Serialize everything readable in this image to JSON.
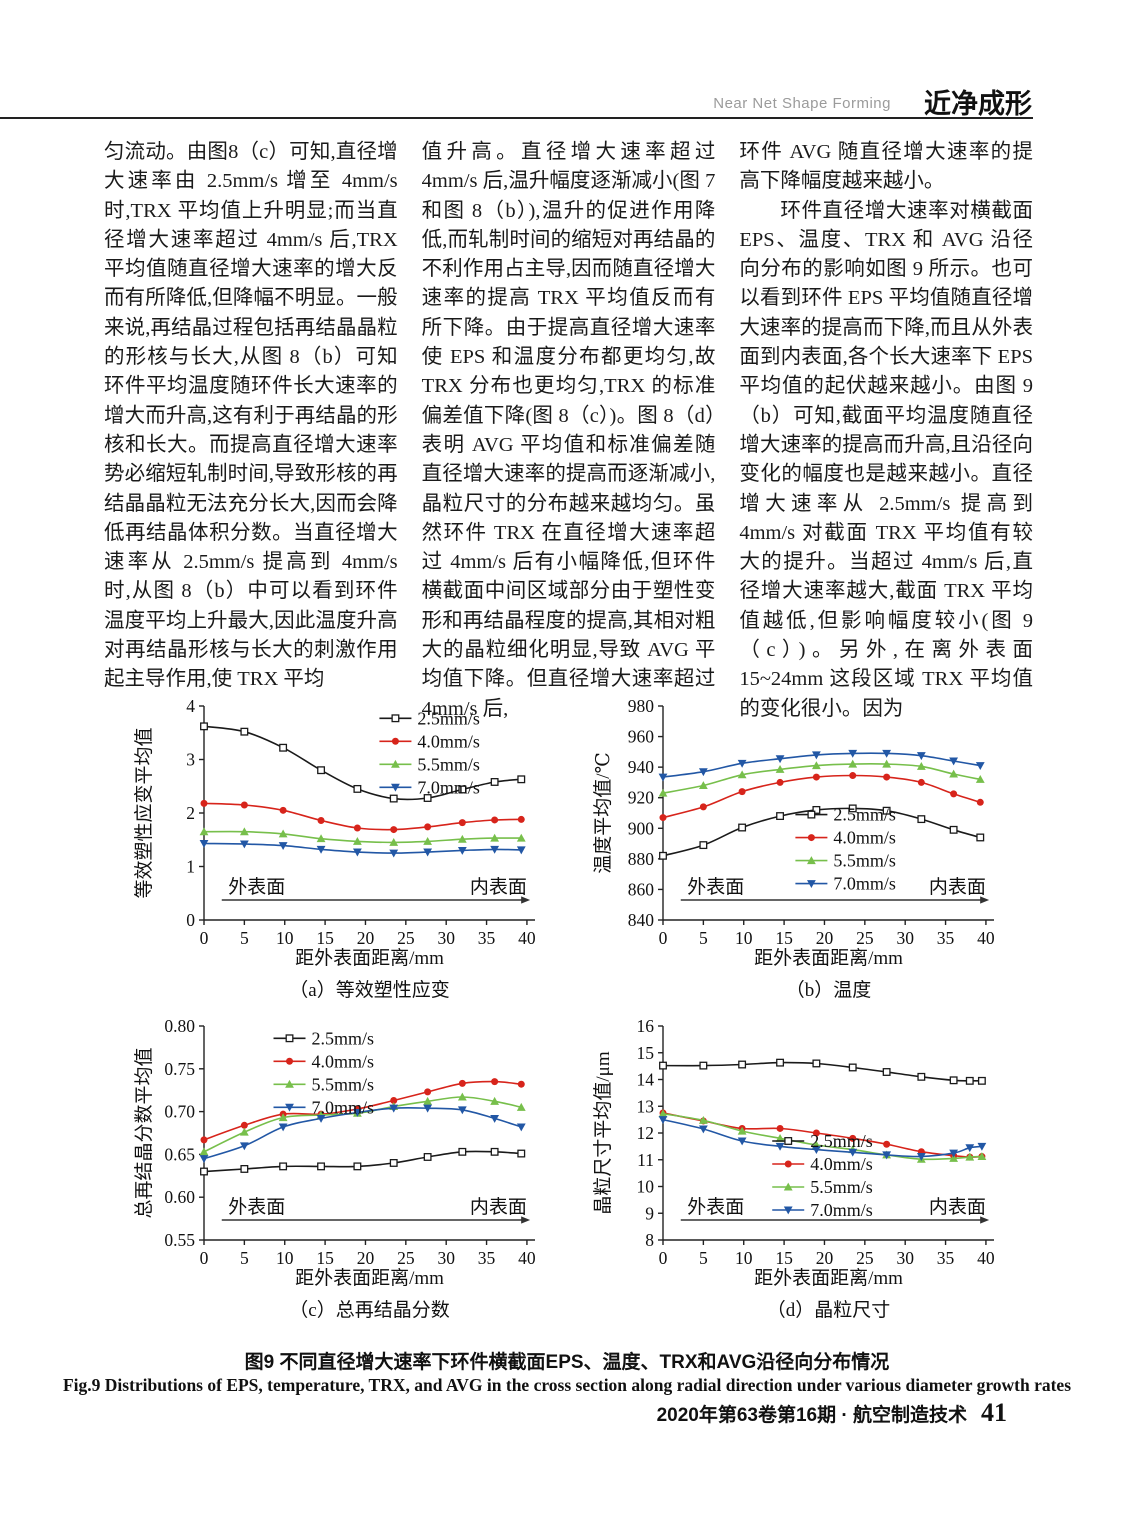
{
  "header": {
    "running_title_en": "Near Net Shape Forming",
    "running_title_zh": "近净成形"
  },
  "columns": {
    "col1": "匀流动。由图8（c）可知,直径增大速率由 2.5mm/s 增至 4mm/s 时,TRX 平均值上升明显;而当直径增大速率超过 4mm/s 后,TRX 平均值随直径增大速率的增大反而有所降低,但降幅不明显。一般来说,再结晶过程包括再结晶晶粒的形核与长大,从图 8（b）可知环件平均温度随环件长大速率的增大而升高,这有利于再结晶的形核和长大。而提高直径增大速率势必缩短轧制时间,导致形核的再结晶晶粒无法充分长大,因而会降低再结晶体积分数。当直径增大速率从 2.5mm/s 提高到 4mm/s 时,从图 8（b）中可以看到环件温度平均上升最大,因此温度升高对再结晶形核与长大的刺激作用起主导作用,使 TRX 平均",
    "col2": "值升高。直径增大速率超过 4mm/s 后,温升幅度逐渐减小(图 7 和图 8（b）),温升的促进作用降低,而轧制时间的缩短对再结晶的不利作用占主导,因而随直径增大速率的提高 TRX 平均值反而有所下降。由于提高直径增大速率使 EPS 和温度分布都更均匀,故 TRX 分布也更均匀,TRX 的标准偏差值下降(图 8（c）)。图 8（d）表明 AVG 平均值和标准偏差随直径增大速率的提高而逐渐减小,晶粒尺寸的分布越来越均匀。虽然环件 TRX 在直径增大速率超过 4mm/s 后有小幅降低,但环件横截面中间区域部分由于塑性变形和再结晶程度的提高,其相对粗大的晶粒细化明显,导致 AVG 平均值下降。但直径增大速率超过 4mm/s 后,",
    "col3_p1": "环件 AVG 随直径增大速率的提高下降幅度越来越小。",
    "col3_p2": "环件直径增大速率对横截面 EPS、温度、TRX 和 AVG 沿径向分布的影响如图 9 所示。也可以看到环件 EPS 平均值随直径增大速率的提高而下降,而且从外表面到内表面,各个长大速率下 EPS 平均值的起伏越来越小。由图 9（b）可知,截面平均温度随直径增大速率的提高而升高,且沿径向变化的幅度也是越来越小。直径增大速率从 2.5mm/s 提高到 4mm/s 对截面 TRX 平均值有较大的提升。当超过 4mm/s 后,直径增大速率越大,截面 TRX 平均值越低,但影响幅度较小(图 9（c）)。另外,在离外表面 15~24mm 这段区域 TRX 平均值的变化很小。因为"
  },
  "figure": {
    "caption_zh": "图9  不同直径增大速率下环件横截面EPS、温度、TRX和AVG沿径向分布情况",
    "caption_en": "Fig.9  Distributions of EPS, temperature, TRX, and AVG in the cross section along radial direction under various diameter growth rates"
  },
  "footer": {
    "journal": "2020年第63卷第16期 · 航空制造技术",
    "page_number": "41"
  },
  "chart_data": [
    {
      "id": "a",
      "type": "line",
      "title": "（a）等效塑性应变",
      "xlabel": "距外表面距离/mm",
      "ylabel": "等效塑性应变平均值",
      "xlim": [
        0,
        41
      ],
      "ylim": [
        0,
        4
      ],
      "xticks": [
        0,
        5,
        10,
        15,
        20,
        25,
        30,
        35,
        40
      ],
      "yticks": [
        0,
        1,
        2,
        3,
        4
      ],
      "ytick_decimals": 0,
      "grid": false,
      "legend_position": "inside-top-right",
      "legend_pos": [
        0.53,
        0.02
      ],
      "x": [
        0,
        5,
        9.8,
        14.5,
        19,
        23.5,
        27.7,
        32,
        36,
        39.3
      ],
      "series": [
        {
          "name": "2.5mm/s",
          "color": "#1a1a1a",
          "marker": "square-open",
          "values": [
            3.62,
            3.52,
            3.22,
            2.8,
            2.45,
            2.27,
            2.28,
            2.44,
            2.58,
            2.63
          ]
        },
        {
          "name": "4.0mm/s",
          "color": "#d7241b",
          "marker": "circle",
          "values": [
            2.18,
            2.15,
            2.05,
            1.86,
            1.72,
            1.69,
            1.74,
            1.82,
            1.87,
            1.88
          ]
        },
        {
          "name": "5.5mm/s",
          "color": "#77bf4b",
          "marker": "triangle-up",
          "values": [
            1.65,
            1.65,
            1.61,
            1.52,
            1.47,
            1.45,
            1.47,
            1.51,
            1.53,
            1.53
          ]
        },
        {
          "name": "7.0mm/s",
          "color": "#2257a5",
          "marker": "triangle-down",
          "values": [
            1.43,
            1.42,
            1.39,
            1.32,
            1.27,
            1.25,
            1.27,
            1.3,
            1.32,
            1.31
          ]
        }
      ],
      "annotation": {
        "left": "外表面",
        "right": "内表面"
      }
    },
    {
      "id": "b",
      "type": "line",
      "title": "（b）温度",
      "xlabel": "距外表面距离/mm",
      "ylabel": "温度平均值/℃",
      "xlim": [
        0,
        41
      ],
      "ylim": [
        840,
        980
      ],
      "xticks": [
        0,
        5,
        10,
        15,
        20,
        25,
        30,
        35,
        40
      ],
      "yticks": [
        840,
        860,
        880,
        900,
        920,
        940,
        960,
        980
      ],
      "ytick_decimals": 0,
      "grid": false,
      "legend_position": "inside-center-right",
      "legend_pos": [
        0.4,
        0.47
      ],
      "x": [
        0,
        5,
        9.8,
        14.5,
        19,
        23.5,
        27.7,
        32,
        36,
        39.3
      ],
      "series": [
        {
          "name": "2.5mm/s",
          "color": "#1a1a1a",
          "marker": "square-open",
          "values": [
            882,
            889,
            900.5,
            908,
            912,
            913,
            911.5,
            906,
            899,
            894
          ]
        },
        {
          "name": "4.0mm/s",
          "color": "#d7241b",
          "marker": "circle",
          "values": [
            907,
            914,
            924,
            930,
            933.5,
            934.5,
            933.5,
            930,
            922.5,
            917
          ]
        },
        {
          "name": "5.5mm/s",
          "color": "#77bf4b",
          "marker": "triangle-up",
          "values": [
            923,
            928,
            935,
            938.5,
            941,
            942,
            942,
            940.5,
            935.5,
            932
          ]
        },
        {
          "name": "7.0mm/s",
          "color": "#2257a5",
          "marker": "triangle-down",
          "values": [
            933.5,
            937,
            942.5,
            945.5,
            948,
            949,
            949,
            947.5,
            944,
            941
          ]
        }
      ],
      "annotation": {
        "left": "外表面",
        "right": "内表面"
      }
    },
    {
      "id": "c",
      "type": "line",
      "title": "（c）总再结晶分数",
      "xlabel": "距外表面距离/mm",
      "ylabel": "总再结晶分数平均值",
      "xlim": [
        0,
        41
      ],
      "ylim": [
        0.55,
        0.8
      ],
      "xticks": [
        0,
        5,
        10,
        15,
        20,
        25,
        30,
        35,
        40
      ],
      "yticks": [
        0.55,
        0.6,
        0.65,
        0.7,
        0.75,
        0.8
      ],
      "ytick_decimals": 2,
      "grid": false,
      "legend_position": "inside-top-left",
      "legend_pos": [
        0.21,
        0.02
      ],
      "x": [
        0,
        5,
        9.8,
        14.5,
        19,
        23.5,
        27.7,
        32,
        36,
        39.3
      ],
      "series": [
        {
          "name": "2.5mm/s",
          "color": "#1a1a1a",
          "marker": "square-open",
          "values": [
            0.63,
            0.633,
            0.636,
            0.636,
            0.636,
            0.64,
            0.647,
            0.653,
            0.653,
            0.651
          ]
        },
        {
          "name": "4.0mm/s",
          "color": "#d7241b",
          "marker": "circle",
          "values": [
            0.667,
            0.684,
            0.697,
            0.697,
            0.703,
            0.713,
            0.723,
            0.733,
            0.735,
            0.732
          ]
        },
        {
          "name": "5.5mm/s",
          "color": "#77bf4b",
          "marker": "triangle-up",
          "values": [
            0.653,
            0.676,
            0.693,
            0.696,
            0.698,
            0.706,
            0.712,
            0.717,
            0.712,
            0.705
          ]
        },
        {
          "name": "7.0mm/s",
          "color": "#2257a5",
          "marker": "triangle-down",
          "values": [
            0.645,
            0.66,
            0.682,
            0.692,
            0.699,
            0.704,
            0.704,
            0.702,
            0.692,
            0.682
          ]
        }
      ],
      "annotation": {
        "left": "外表面",
        "right": "内表面"
      }
    },
    {
      "id": "d",
      "type": "line",
      "title": "（d）晶粒尺寸",
      "xlabel": "距外表面距离/mm",
      "ylabel": "晶粒尺寸平均值/μm",
      "xlim": [
        0,
        41
      ],
      "ylim": [
        8,
        16
      ],
      "xticks": [
        0,
        5,
        10,
        15,
        20,
        25,
        30,
        35,
        40
      ],
      "yticks": [
        8,
        9,
        10,
        11,
        12,
        13,
        14,
        15,
        16
      ],
      "ytick_decimals": 0,
      "grid": false,
      "legend_position": "inside-bottom-center",
      "legend_pos": [
        0.33,
        0.5
      ],
      "x": [
        0,
        5,
        9.8,
        14.5,
        19,
        23.5,
        27.7,
        32,
        36,
        38,
        39.5
      ],
      "series": [
        {
          "name": "2.5mm/s",
          "color": "#1a1a1a",
          "marker": "square-open",
          "values": [
            14.52,
            14.52,
            14.56,
            14.63,
            14.6,
            14.45,
            14.28,
            14.1,
            13.97,
            13.95,
            13.95
          ]
        },
        {
          "name": "4.0mm/s",
          "color": "#d7241b",
          "marker": "circle",
          "values": [
            12.75,
            12.45,
            12.17,
            12.17,
            12.0,
            11.8,
            11.58,
            11.3,
            11.15,
            11.1,
            11.12
          ]
        },
        {
          "name": "5.5mm/s",
          "color": "#77bf4b",
          "marker": "triangle-up",
          "values": [
            12.72,
            12.47,
            12.07,
            11.8,
            11.55,
            11.38,
            11.18,
            11.02,
            11.05,
            11.1,
            11.12
          ]
        },
        {
          "name": "7.0mm/s",
          "color": "#2257a5",
          "marker": "triangle-down",
          "values": [
            12.5,
            12.15,
            11.7,
            11.5,
            11.38,
            11.28,
            11.18,
            11.12,
            11.25,
            11.45,
            11.5
          ]
        }
      ],
      "annotation": {
        "left": "外表面",
        "right": "内表面"
      }
    }
  ]
}
